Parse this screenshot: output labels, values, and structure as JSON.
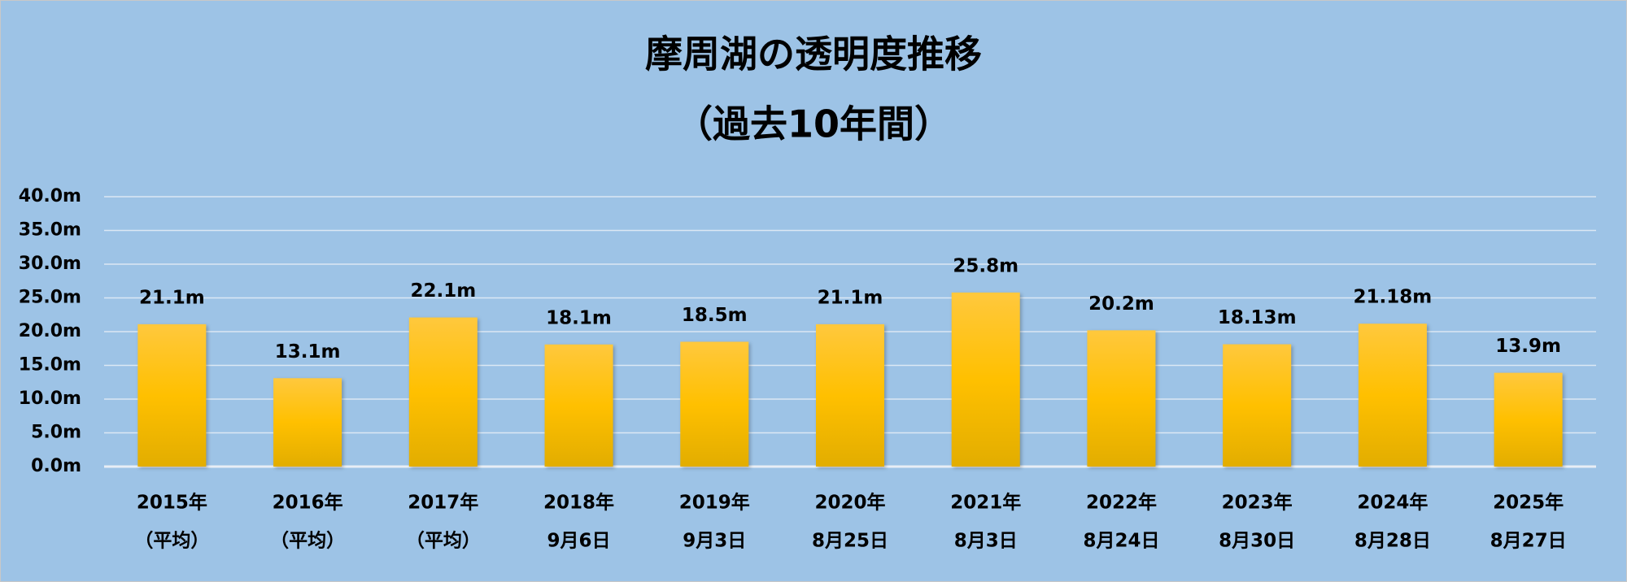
{
  "chart_data": {
    "type": "bar",
    "title": "摩周湖の透明度推移",
    "subtitle": "（過去10年間）",
    "categories": [
      [
        "2015年",
        "（平均）"
      ],
      [
        "2016年",
        "（平均）"
      ],
      [
        "2017年",
        "（平均）"
      ],
      [
        "2018年",
        "9月6日"
      ],
      [
        "2019年",
        "9月3日"
      ],
      [
        "2020年",
        "8月25日"
      ],
      [
        "2021年",
        "8月3日"
      ],
      [
        "2022年",
        "8月24日"
      ],
      [
        "2023年",
        "8月30日"
      ],
      [
        "2024年",
        "8月28日"
      ],
      [
        "2025年",
        "8月27日"
      ]
    ],
    "values": [
      21.1,
      13.1,
      22.1,
      18.1,
      18.5,
      21.1,
      25.8,
      20.2,
      18.13,
      21.18,
      13.9
    ],
    "value_labels": [
      "21.1m",
      "13.1m",
      "22.1m",
      "18.1m",
      "18.5m",
      "21.1m",
      "25.8m",
      "20.2m",
      "18.13m",
      "21.18m",
      "13.9m"
    ],
    "color": "#ffc000",
    "ylim": [
      0,
      40
    ],
    "yticks": [
      {
        "value": 0,
        "label": "0.0m"
      },
      {
        "value": 5,
        "label": "5.0m"
      },
      {
        "value": 10,
        "label": "10.0m"
      },
      {
        "value": 15,
        "label": "15.0m"
      },
      {
        "value": 20,
        "label": "20.0m"
      },
      {
        "value": 25,
        "label": "25.0m"
      },
      {
        "value": 30,
        "label": "30.0m"
      },
      {
        "value": 35,
        "label": "35.0m"
      },
      {
        "value": 40,
        "label": "40.0m"
      }
    ],
    "grid": true
  }
}
